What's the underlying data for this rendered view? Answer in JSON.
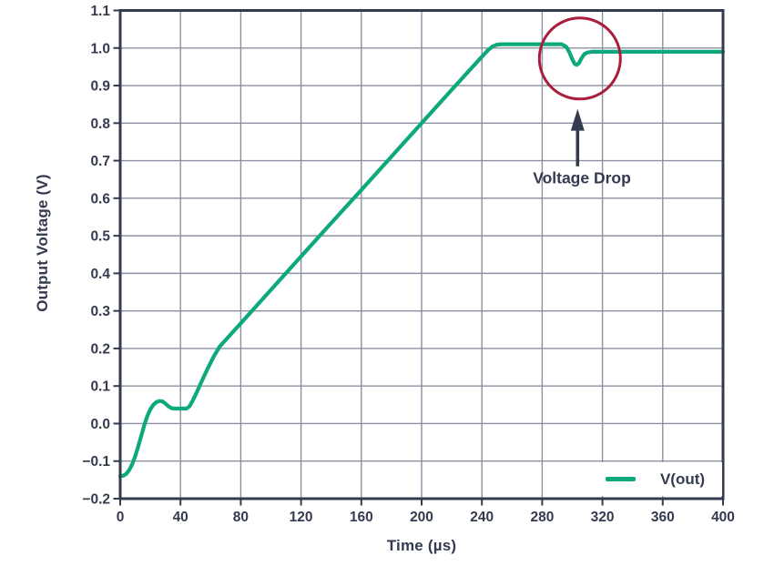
{
  "page": {
    "background": "#ffffff"
  },
  "chart_data": {
    "type": "line",
    "title": "",
    "xlabel": "Time (µs)",
    "ylabel": "Output Voltage (V)",
    "xlim": [
      0,
      400
    ],
    "ylim": [
      -0.2,
      1.1
    ],
    "grid": true,
    "xticks": [
      0,
      40,
      80,
      120,
      160,
      200,
      240,
      280,
      320,
      360,
      400
    ],
    "xtick_labels": [
      "0",
      "40",
      "80",
      "120",
      "160",
      "200",
      "240",
      "280",
      "320",
      "360",
      "400"
    ],
    "yticks": [
      1.1,
      1.0,
      0.9,
      0.8,
      0.7,
      0.6,
      0.5,
      0.4,
      0.3,
      0.2,
      0.1,
      0.0,
      -0.1,
      -0.2
    ],
    "ytick_labels": [
      "1.1",
      "1.0",
      "0.9",
      "0.8",
      "0.7",
      "0.6",
      "0.5",
      "0.4",
      "0.3",
      "0.2",
      "0.1",
      "0.0",
      "−0.1",
      "−0.2"
    ],
    "legend": {
      "position": "lower-right",
      "label": "V(out)"
    },
    "series": [
      {
        "name": "V(out)",
        "color": "#0ea87d",
        "points": [
          [
            0,
            -0.14
          ],
          [
            2,
            -0.139
          ],
          [
            4,
            -0.134
          ],
          [
            6,
            -0.124
          ],
          [
            8,
            -0.108
          ],
          [
            10,
            -0.086
          ],
          [
            12,
            -0.06
          ],
          [
            14,
            -0.032
          ],
          [
            16,
            -0.004
          ],
          [
            18,
            0.02
          ],
          [
            20,
            0.038
          ],
          [
            22,
            0.05
          ],
          [
            24,
            0.057
          ],
          [
            26,
            0.06
          ],
          [
            28,
            0.059
          ],
          [
            30,
            0.053
          ],
          [
            32,
            0.046
          ],
          [
            34,
            0.041
          ],
          [
            36,
            0.04
          ],
          [
            44,
            0.04
          ],
          [
            46,
            0.046
          ],
          [
            48,
            0.06
          ],
          [
            51,
            0.085
          ],
          [
            54,
            0.112
          ],
          [
            58,
            0.146
          ],
          [
            62,
            0.178
          ],
          [
            66,
            0.205
          ],
          [
            80,
            0.267
          ],
          [
            100,
            0.356
          ],
          [
            120,
            0.445
          ],
          [
            140,
            0.534
          ],
          [
            160,
            0.622
          ],
          [
            180,
            0.711
          ],
          [
            200,
            0.8
          ],
          [
            220,
            0.889
          ],
          [
            240,
            0.977
          ],
          [
            244,
            0.994
          ],
          [
            247,
            1.004
          ],
          [
            250,
            1.009
          ],
          [
            253,
            1.01
          ],
          [
            293,
            1.01
          ],
          [
            296,
            1.003
          ],
          [
            298,
            0.989
          ],
          [
            300,
            0.97
          ],
          [
            301.5,
            0.958
          ],
          [
            303,
            0.955
          ],
          [
            304.5,
            0.96
          ],
          [
            306,
            0.972
          ],
          [
            308,
            0.984
          ],
          [
            310,
            0.988
          ],
          [
            313,
            0.99
          ],
          [
            400,
            0.99
          ]
        ]
      }
    ],
    "annotation": {
      "label": "Voltage Drop",
      "circle": {
        "x": 305,
        "y": 0.972,
        "radius_px": 44.5,
        "color": "#a91e3c"
      },
      "arrow": {
        "x": 303.5,
        "y_tip": 0.838,
        "y_tail": 0.685,
        "color": "#343b4f"
      }
    },
    "colors": {
      "axis": "#343b4f",
      "grid": "#8b90a1",
      "text": "#343b4f",
      "series": "#0ea87d",
      "annotation_circle": "#a91e3c"
    }
  }
}
